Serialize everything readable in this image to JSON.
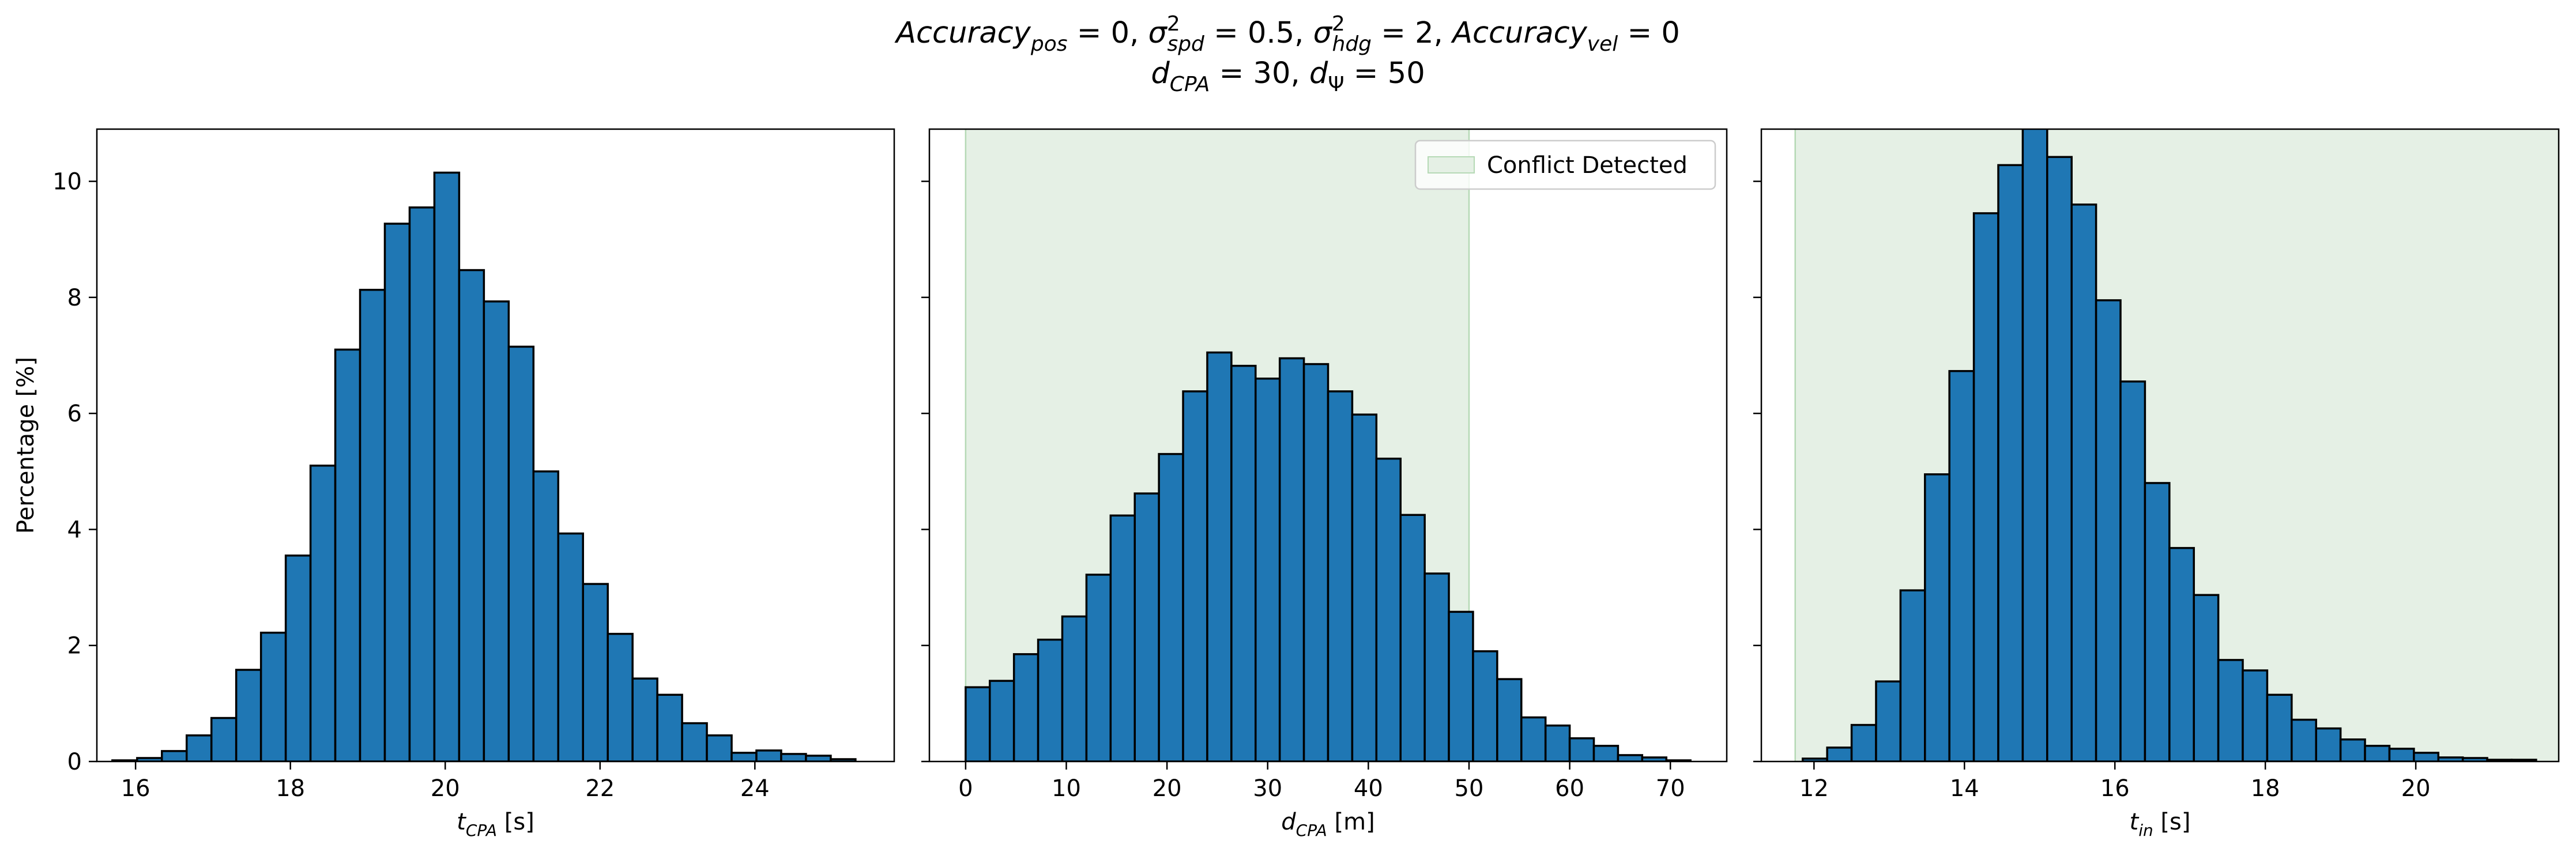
{
  "figure": {
    "title": {
      "line1": [
        {
          "t": "Accuracy",
          "i": true
        },
        {
          "t": "pos",
          "i": true,
          "sub": true
        },
        {
          "t": " = 0, "
        },
        {
          "t": "σ",
          "i": true
        },
        {
          "t": "2",
          "sup": true
        },
        {
          "t": "spd",
          "i": true,
          "sub": true,
          "after_sup": true
        },
        {
          "t": " = 0.5, "
        },
        {
          "t": "σ",
          "i": true
        },
        {
          "t": "2",
          "sup": true
        },
        {
          "t": "hdg",
          "i": true,
          "sub": true,
          "after_sup": true
        },
        {
          "t": " = 2, "
        },
        {
          "t": "Accuracy",
          "i": true
        },
        {
          "t": "vel",
          "i": true,
          "sub": true
        },
        {
          "t": " = 0"
        }
      ],
      "line2": [
        {
          "t": "d",
          "i": true
        },
        {
          "t": "CPA",
          "i": true,
          "sub": true
        },
        {
          "t": " = 30, "
        },
        {
          "t": "d",
          "i": true
        },
        {
          "t": "Ψ",
          "sub": true
        },
        {
          "t": " = 50"
        }
      ]
    },
    "colors": {
      "bar_fill": "#1f77b4",
      "bar_edge": "#000000",
      "region_fill": "#e5f0e5",
      "region_edge": "#b5d9b5"
    }
  },
  "chart_data": [
    {
      "type": "bar",
      "variant": "histogram",
      "xlabel": {
        "base": "t",
        "sub": "CPA",
        "unit": " [s]"
      },
      "ylabel": "Percentage [%]",
      "xlim": [
        15.5,
        25.8
      ],
      "ylim": [
        0,
        10.9
      ],
      "xticks": [
        16,
        18,
        20,
        22,
        24
      ],
      "yticks": [
        0,
        2,
        4,
        6,
        8,
        10
      ],
      "grid": false,
      "bin_start": 15.7,
      "bin_width": 0.32,
      "values": [
        0.02,
        0.06,
        0.18,
        0.45,
        0.75,
        1.58,
        2.22,
        3.55,
        5.1,
        7.1,
        8.13,
        9.27,
        9.55,
        10.15,
        8.47,
        7.93,
        7.15,
        5.0,
        3.93,
        3.06,
        2.2,
        1.43,
        1.15,
        0.66,
        0.45,
        0.15,
        0.19,
        0.13,
        0.1,
        0.04
      ]
    },
    {
      "type": "bar",
      "variant": "histogram",
      "xlabel": {
        "base": "d",
        "sub": "CPA",
        "unit": " [m]"
      },
      "ylabel": "",
      "xlim": [
        -3.6,
        75.6
      ],
      "ylim": [
        0,
        10.9
      ],
      "xticks": [
        0,
        10,
        20,
        30,
        40,
        50,
        60,
        70
      ],
      "yticks": [
        0,
        2,
        4,
        6,
        8,
        10
      ],
      "grid": false,
      "bin_start": 0,
      "bin_width": 2.4,
      "values": [
        1.28,
        1.39,
        1.85,
        2.1,
        2.5,
        3.22,
        4.24,
        4.62,
        5.3,
        6.38,
        7.05,
        6.82,
        6.6,
        6.95,
        6.85,
        6.38,
        5.98,
        5.22,
        4.25,
        3.24,
        2.58,
        1.9,
        1.42,
        0.76,
        0.62,
        0.4,
        0.27,
        0.11,
        0.07,
        0.02
      ],
      "shaded_region": {
        "x": [
          0,
          50
        ],
        "label": "Conflict Detected"
      },
      "legend": {
        "position": "upper right",
        "entries": [
          "Conflict Detected"
        ]
      }
    },
    {
      "type": "bar",
      "variant": "histogram",
      "xlabel": {
        "base": "t",
        "sub": "in",
        "unit": " [s]"
      },
      "ylabel": "",
      "xlim": [
        11.3,
        21.9
      ],
      "ylim": [
        0,
        10.9
      ],
      "xticks": [
        12,
        14,
        16,
        18,
        20
      ],
      "yticks": [
        0,
        2,
        4,
        6,
        8,
        10
      ],
      "grid": false,
      "bin_start": 11.85,
      "bin_width": 0.325,
      "values": [
        0.05,
        0.24,
        0.63,
        1.38,
        2.95,
        4.95,
        6.73,
        9.45,
        10.28,
        10.95,
        10.42,
        9.6,
        7.95,
        6.55,
        4.8,
        3.68,
        2.87,
        1.75,
        1.57,
        1.15,
        0.72,
        0.57,
        0.38,
        0.27,
        0.22,
        0.15,
        0.07,
        0.06,
        0.03,
        0.03
      ],
      "shaded_region": {
        "x": [
          11.75,
          22.5
        ],
        "label": "Conflict Detected"
      }
    }
  ]
}
